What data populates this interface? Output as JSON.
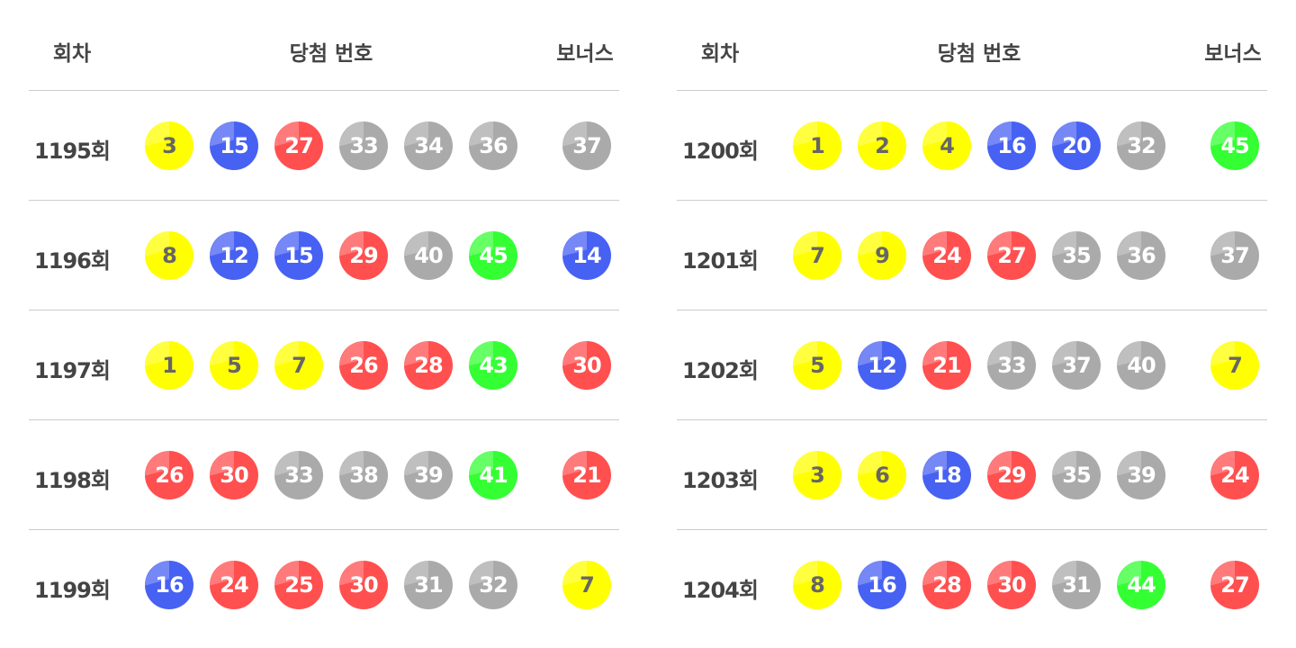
{
  "headers": {
    "round": "회차",
    "numbers": "당첨 번호",
    "bonus": "보너스"
  },
  "colors": {
    "1-10": "#ffff00",
    "11-20": "#4761f2",
    "21-30": "#ff4f4f",
    "31-40": "#aaaaaa",
    "41-45": "#33ff33"
  },
  "tables": [
    {
      "rows": [
        {
          "round": "1195회",
          "numbers": [
            3,
            15,
            27,
            33,
            34,
            36
          ],
          "bonus": 37
        },
        {
          "round": "1196회",
          "numbers": [
            8,
            12,
            15,
            29,
            40,
            45
          ],
          "bonus": 14
        },
        {
          "round": "1197회",
          "numbers": [
            1,
            5,
            7,
            26,
            28,
            43
          ],
          "bonus": 30
        },
        {
          "round": "1198회",
          "numbers": [
            26,
            30,
            33,
            38,
            39,
            41
          ],
          "bonus": 21
        },
        {
          "round": "1199회",
          "numbers": [
            16,
            24,
            25,
            30,
            31,
            32
          ],
          "bonus": 7
        }
      ]
    },
    {
      "rows": [
        {
          "round": "1200회",
          "numbers": [
            1,
            2,
            4,
            16,
            20,
            32
          ],
          "bonus": 45
        },
        {
          "round": "1201회",
          "numbers": [
            7,
            9,
            24,
            27,
            35,
            36
          ],
          "bonus": 37
        },
        {
          "round": "1202회",
          "numbers": [
            5,
            12,
            21,
            33,
            37,
            40
          ],
          "bonus": 7
        },
        {
          "round": "1203회",
          "numbers": [
            3,
            6,
            18,
            29,
            35,
            39
          ],
          "bonus": 24
        },
        {
          "round": "1204회",
          "numbers": [
            8,
            16,
            28,
            30,
            31,
            44
          ],
          "bonus": 27
        }
      ]
    }
  ]
}
